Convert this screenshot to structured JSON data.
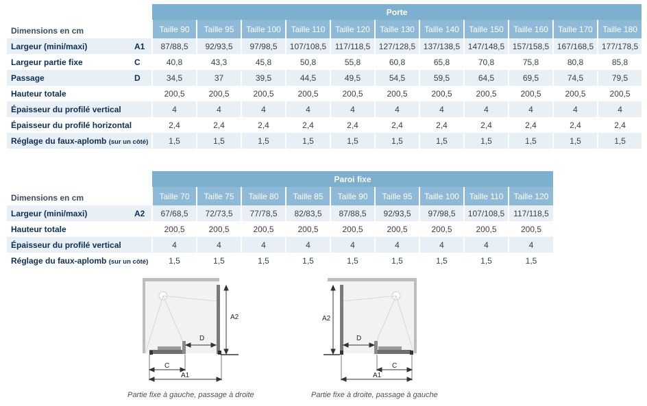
{
  "porte": {
    "title": "Porte",
    "dimensions_label": "Dimensions en cm",
    "sizes": [
      "Taille 90",
      "Taille 95",
      "Taille 100",
      "Taille 110",
      "Taille 120",
      "Taille 130",
      "Taille 140",
      "Taille 150",
      "Taille 160",
      "Taille 170",
      "Taille 180"
    ],
    "rows": [
      {
        "label": "Largeur (mini/maxi)",
        "note": "",
        "code": "A1",
        "values": [
          "87/88,5",
          "92/93,5",
          "97/98,5",
          "107/108,5",
          "117/118,5",
          "127/128,5",
          "137/138,5",
          "147/148,5",
          "157/158,5",
          "167/168,5",
          "177/178,5"
        ]
      },
      {
        "label": "Largeur partie fixe",
        "note": "",
        "code": "C",
        "values": [
          "40,8",
          "43,3",
          "45,8",
          "50,8",
          "55,8",
          "60,8",
          "65,8",
          "70,8",
          "75,8",
          "80,8",
          "85,8"
        ]
      },
      {
        "label": "Passage",
        "note": "",
        "code": "D",
        "values": [
          "34,5",
          "37",
          "39,5",
          "44,5",
          "49,5",
          "54,5",
          "59,5",
          "64,5",
          "69,5",
          "74,5",
          "79,5"
        ]
      },
      {
        "label": "Hauteur totale",
        "note": "",
        "code": "",
        "values": [
          "200,5",
          "200,5",
          "200,5",
          "200,5",
          "200,5",
          "200,5",
          "200,5",
          "200,5",
          "200,5",
          "200,5",
          "200,5"
        ]
      },
      {
        "label": "Épaisseur du profilé vertical",
        "note": "",
        "code": "",
        "values": [
          "4",
          "4",
          "4",
          "4",
          "4",
          "4",
          "4",
          "4",
          "4",
          "4",
          "4"
        ]
      },
      {
        "label": "Épaisseur du profilé horizontal",
        "note": "",
        "code": "",
        "values": [
          "2,4",
          "2,4",
          "2,4",
          "2,4",
          "2,4",
          "2,4",
          "2,4",
          "2,4",
          "2,4",
          "2,4",
          "2,4"
        ]
      },
      {
        "label": "Réglage du faux-aplomb",
        "note": "(sur un côté)",
        "code": "",
        "values": [
          "1,5",
          "1,5",
          "1,5",
          "1,5",
          "1,5",
          "1,5",
          "1,5",
          "1,5",
          "1,5",
          "1,5",
          "1,5"
        ]
      }
    ]
  },
  "paroi": {
    "title": "Paroi fixe",
    "dimensions_label": "Dimensions en cm",
    "sizes": [
      "Taille 70",
      "Taille 75",
      "Taille 80",
      "Taille 85",
      "Taille 90",
      "Taille 95",
      "Taille 100",
      "Taille 110",
      "Taille 120"
    ],
    "rows": [
      {
        "label": "Largeur (mini/maxi)",
        "note": "",
        "code": "A2",
        "values": [
          "67/68,5",
          "72/73,5",
          "77/78,5",
          "82/83,5",
          "87/88,5",
          "92/93,5",
          "97/98,5",
          "107/108,5",
          "117/118,5"
        ]
      },
      {
        "label": "Hauteur totale",
        "note": "",
        "code": "",
        "values": [
          "200,5",
          "200,5",
          "200,5",
          "200,5",
          "200,5",
          "200,5",
          "200,5",
          "200,5",
          "200,5"
        ]
      },
      {
        "label": "Épaisseur du profilé vertical",
        "note": "",
        "code": "",
        "values": [
          "4",
          "4",
          "4",
          "4",
          "4",
          "4",
          "4",
          "4",
          "4"
        ]
      },
      {
        "label": "Réglage du faux-aplomb",
        "note": "(sur un côté)",
        "code": "",
        "values": [
          "1,5",
          "1,5",
          "1,5",
          "1,5",
          "1,5",
          "1,5",
          "1,5",
          "1,5",
          "1,5"
        ]
      }
    ]
  },
  "diagrams": {
    "left": {
      "labels": {
        "a2": "A2",
        "d": "D",
        "c": "C",
        "a1": "A1"
      },
      "caption": "Partie fixe à gauche, passage à droite"
    },
    "right": {
      "labels": {
        "a2": "A2",
        "d": "D",
        "c": "C",
        "a1": "A1"
      },
      "caption": "Partie fixe à droite, passage à gauche"
    }
  },
  "colors": {
    "header": "#7dafcf",
    "subheader": "#8ebad7",
    "row_shade": "#e8eff5",
    "label_text": "#0d2f52"
  }
}
